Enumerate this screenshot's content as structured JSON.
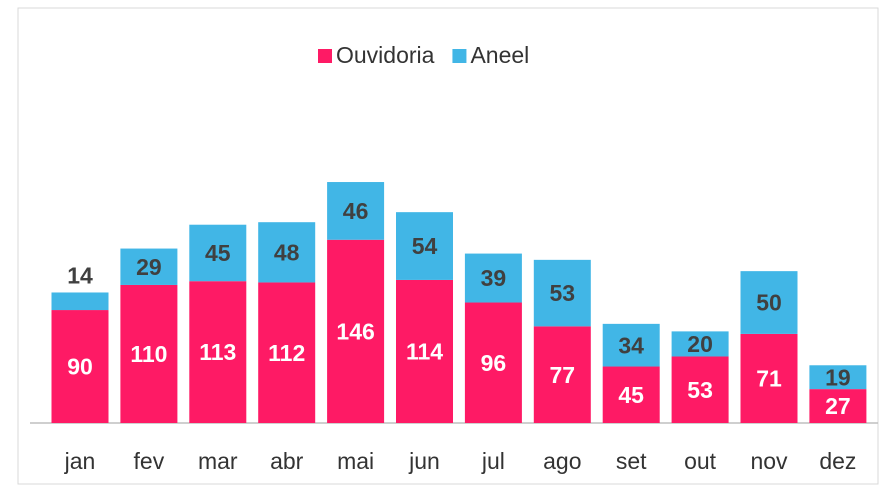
{
  "chart_data": {
    "type": "bar",
    "stacked": true,
    "categories": [
      "jan",
      "fev",
      "mar",
      "abr",
      "mai",
      "jun",
      "jul",
      "ago",
      "set",
      "out",
      "nov",
      "dez"
    ],
    "series": [
      {
        "name": "Ouvidoria",
        "color": "#fe1a65",
        "values": [
          90,
          110,
          113,
          112,
          146,
          114,
          96,
          77,
          45,
          53,
          71,
          27
        ]
      },
      {
        "name": "Aneel",
        "color": "#41b6e6",
        "values": [
          14,
          29,
          45,
          48,
          46,
          54,
          39,
          53,
          34,
          20,
          50,
          19
        ]
      }
    ],
    "legend": "top"
  }
}
